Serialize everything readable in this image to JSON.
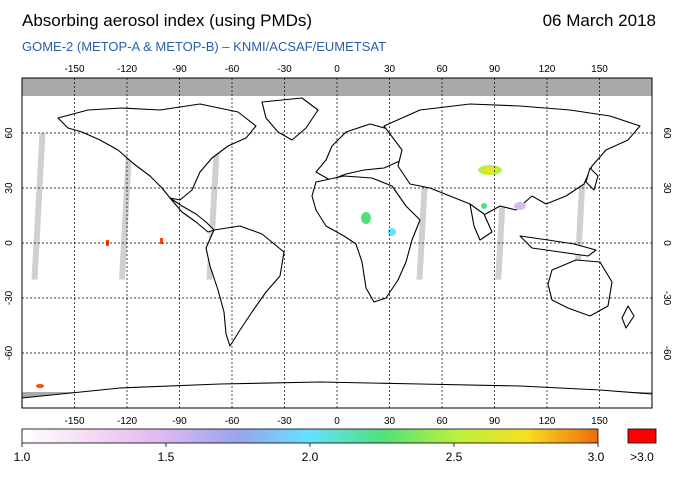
{
  "header": {
    "title": "Absorbing aerosol index (using PMDs)",
    "subtitle": "GOME-2 (METOP-A & METOP-B)  –  KNMI/ACSAF/EUMETSAT",
    "date": "06 March 2018"
  },
  "axes": {
    "lon_ticks": [
      "-150",
      "-120",
      "-90",
      "-60",
      "-30",
      "0",
      "30",
      "60",
      "90",
      "120",
      "150"
    ],
    "lat_ticks": [
      "60",
      "30",
      "0",
      "-30",
      "-60"
    ]
  },
  "colorbar": {
    "labels": [
      "1.0",
      "1.5",
      "2.0",
      "2.5",
      "3.0"
    ],
    "overflow_label": ">3.0",
    "stops": [
      "#ffffff",
      "#f4d8f4",
      "#d9b8f2",
      "#9aa4ee",
      "#66e0ff",
      "#4fe07a",
      "#b8f040",
      "#f5e020",
      "#f06a10"
    ],
    "overflow_color": "#ff0000"
  },
  "colors": {
    "no_data": "#a9a9a9",
    "land_outline": "#000000",
    "grid": "#000000"
  }
}
